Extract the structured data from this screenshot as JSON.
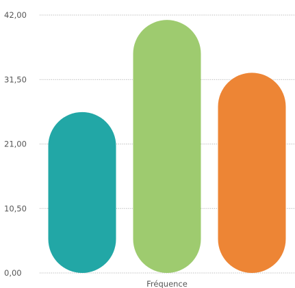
{
  "chart_data": {
    "type": "bar",
    "categories": [
      "Fréquence"
    ],
    "series": [
      {
        "values": [
          26.2
        ],
        "color": "#22A7A6"
      },
      {
        "values": [
          41.2
        ],
        "color": "#9ECB6F"
      },
      {
        "values": [
          32.6
        ],
        "color": "#ED8535"
      }
    ],
    "ylim": [
      0,
      42
    ],
    "yticks": [
      "0,00",
      "10,50",
      "21,00",
      "31,50",
      "42,00"
    ],
    "xlabel": "",
    "ylabel": "",
    "grid": true,
    "bar_style": "rounded-pill"
  }
}
